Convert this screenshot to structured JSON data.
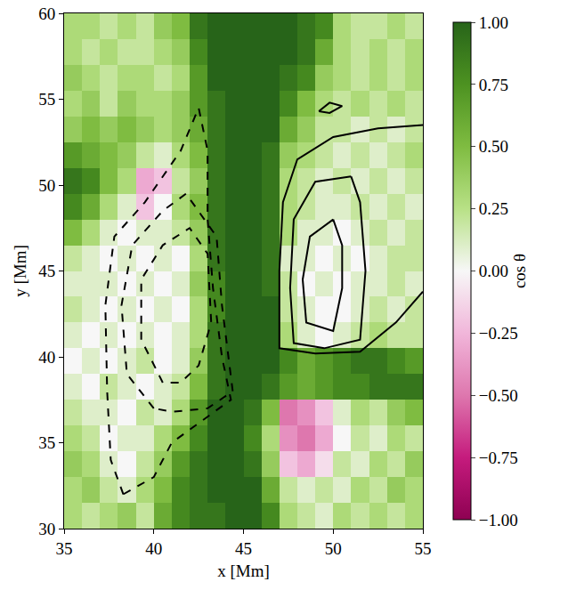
{
  "chart_data": {
    "type": "heatmap",
    "xlabel": "x [Mm]",
    "ylabel": "y [Mm]",
    "xlim": [
      35,
      55
    ],
    "ylim": [
      30,
      60
    ],
    "xticks": [
      35,
      40,
      45,
      50,
      55
    ],
    "yticks": [
      30,
      35,
      40,
      45,
      50,
      55,
      60
    ],
    "x": [
      35.5,
      36.5,
      37.5,
      38.5,
      39.5,
      40.5,
      41.5,
      42.5,
      43.5,
      44.5,
      45.5,
      46.5,
      47.5,
      48.5,
      49.5,
      50.5,
      51.5,
      52.5,
      53.5,
      54.5
    ],
    "y": [
      30.75,
      32.25,
      33.75,
      35.25,
      36.75,
      38.25,
      39.75,
      41.25,
      42.75,
      44.25,
      45.75,
      47.25,
      48.75,
      50.25,
      51.75,
      53.25,
      54.75,
      56.25,
      57.75,
      59.25
    ],
    "cells": [
      [
        0.3,
        0.2,
        0.3,
        0.4,
        0.2,
        0.6,
        0.8,
        0.9,
        0.9,
        1,
        1,
        0.8,
        0.3,
        0.2,
        0.1,
        0.3,
        0.2,
        0.3,
        0.2,
        0.3
      ],
      [
        0.3,
        0.4,
        0.2,
        0.1,
        0.3,
        0.5,
        0.8,
        0.9,
        1,
        1,
        1,
        0.6,
        0.2,
        0.1,
        0.2,
        0.1,
        0.3,
        0.2,
        0.4,
        0.3
      ],
      [
        0.4,
        0.3,
        0.1,
        0.0,
        0.2,
        0.4,
        0.7,
        0.9,
        1,
        1,
        0.9,
        0.4,
        -0.2,
        -0.3,
        -0.1,
        0.2,
        0.1,
        0.3,
        0.2,
        0.4
      ],
      [
        0.3,
        0.2,
        0.0,
        0.1,
        0.1,
        0.3,
        0.5,
        0.8,
        1,
        1,
        0.8,
        0.3,
        -0.4,
        -0.5,
        -0.3,
        0.0,
        0.2,
        0.1,
        0.3,
        0.2
      ],
      [
        0.2,
        0.1,
        0.1,
        0.0,
        0.2,
        0.1,
        0.3,
        0.7,
        1,
        1,
        0.9,
        0.5,
        -0.5,
        -0.4,
        -0.2,
        0.1,
        0.3,
        0.2,
        0.4,
        0.5
      ],
      [
        0.1,
        0.0,
        0.2,
        0.1,
        0.0,
        0.1,
        0.2,
        0.5,
        0.9,
        1,
        1,
        0.9,
        0.7,
        0.6,
        0.7,
        0.8,
        0.8,
        0.9,
        0.9,
        0.9
      ],
      [
        0.0,
        0.1,
        0.0,
        0.1,
        0.2,
        0.0,
        0.1,
        0.4,
        0.9,
        1,
        1,
        1,
        0.8,
        0.6,
        0.7,
        0.8,
        0.9,
        0.9,
        0.8,
        0.7
      ],
      [
        0.1,
        0.0,
        0.1,
        0.0,
        0.1,
        0.0,
        0.1,
        0.3,
        0.9,
        1,
        1,
        1,
        0.3,
        0.1,
        0.0,
        0.1,
        0.2,
        0.3,
        0.2,
        0.2
      ],
      [
        0.2,
        0.1,
        0.0,
        0.1,
        0.0,
        0.1,
        0.0,
        0.3,
        0.8,
        1,
        1,
        1,
        0.2,
        0.1,
        0.0,
        0.0,
        0.1,
        0.2,
        0.1,
        0.2
      ],
      [
        0.1,
        0.1,
        0.1,
        0.0,
        0.1,
        0.0,
        0.1,
        0.4,
        0.8,
        1,
        1,
        0.9,
        0.2,
        0.0,
        0.1,
        0.0,
        0.1,
        0.1,
        0.2,
        0.1
      ],
      [
        0.2,
        0.1,
        0.0,
        0.1,
        0.0,
        0.1,
        0.0,
        0.3,
        0.9,
        1,
        1,
        0.9,
        0.1,
        0.1,
        0.0,
        0.1,
        0.0,
        0.1,
        0.2,
        0.2
      ],
      [
        0.5,
        0.3,
        0.1,
        0.0,
        0.1,
        0.1,
        0.2,
        0.4,
        0.9,
        1,
        1,
        0.9,
        0.3,
        0.1,
        0.1,
        0.0,
        0.1,
        0.2,
        0.1,
        0.2
      ],
      [
        0.8,
        0.6,
        0.3,
        0.1,
        -0.2,
        0.0,
        0.3,
        0.5,
        0.9,
        1,
        1,
        0.9,
        0.3,
        0.2,
        0.1,
        0.1,
        0.2,
        0.1,
        0.2,
        0.1
      ],
      [
        0.9,
        0.8,
        0.5,
        0.3,
        -0.3,
        -0.2,
        0.2,
        0.4,
        0.9,
        1,
        1,
        0.9,
        0.3,
        0.2,
        0.1,
        0.2,
        0.1,
        0.2,
        0.1,
        0.2
      ],
      [
        0.7,
        0.6,
        0.5,
        0.4,
        0.2,
        0.1,
        0.3,
        0.5,
        0.9,
        1,
        1,
        0.9,
        0.4,
        0.3,
        0.2,
        0.1,
        0.2,
        0.1,
        0.2,
        0.3
      ],
      [
        0.4,
        0.5,
        0.4,
        0.5,
        0.4,
        0.3,
        0.4,
        0.6,
        0.9,
        1,
        1,
        1,
        0.6,
        0.4,
        0.2,
        0.2,
        0.1,
        0.2,
        0.1,
        0.2
      ],
      [
        0.3,
        0.4,
        0.2,
        0.4,
        0.3,
        0.3,
        0.4,
        0.7,
        0.9,
        1,
        1,
        1,
        0.8,
        0.5,
        0.3,
        0.2,
        0.3,
        0.2,
        0.3,
        0.2
      ],
      [
        0.4,
        0.3,
        0.2,
        0.3,
        0.3,
        0.2,
        0.3,
        0.7,
        1,
        1,
        1,
        1,
        0.9,
        0.8,
        0.4,
        0.3,
        0.2,
        0.3,
        0.2,
        0.3
      ],
      [
        0.3,
        0.2,
        0.3,
        0.2,
        0.2,
        0.3,
        0.4,
        0.8,
        1,
        1,
        1,
        1,
        1,
        0.9,
        0.6,
        0.3,
        0.2,
        0.3,
        0.2,
        0.3
      ],
      [
        0.3,
        0.3,
        0.2,
        0.3,
        0.2,
        0.4,
        0.5,
        0.9,
        1,
        1,
        1,
        1,
        1,
        0.9,
        0.8,
        0.3,
        0.2,
        0.2,
        0.3,
        0.2
      ]
    ],
    "colorbar": {
      "title": "cos θ",
      "range": [
        -1,
        1
      ],
      "ticks": [
        {
          "value": -1,
          "label": "−1.00"
        },
        {
          "value": -0.75,
          "label": "−0.75"
        },
        {
          "value": -0.5,
          "label": "−0.50"
        },
        {
          "value": -0.25,
          "label": "−0.25"
        },
        {
          "value": 0,
          "label": "0.00"
        },
        {
          "value": 0.25,
          "label": "0.25"
        },
        {
          "value": 0.5,
          "label": "0.50"
        },
        {
          "value": 0.75,
          "label": "0.75"
        },
        {
          "value": 1,
          "label": "1.00"
        }
      ]
    },
    "series": [
      {
        "type": "line",
        "line_style": "dashed",
        "color": "#000000",
        "x": [
          38.3,
          37.6,
          37.4,
          37.3,
          37.8,
          39.5,
          41.5,
          42.5,
          43.0,
          43.0,
          43.3,
          43.8,
          44.3,
          43.0,
          41.0,
          40.0,
          38.3
        ],
        "y": [
          32.0,
          34.0,
          38.0,
          43.0,
          47.0,
          49.0,
          52.0,
          54.5,
          52.0,
          48.0,
          44.0,
          40.0,
          37.5,
          36.5,
          35.0,
          33.0,
          32.0
        ]
      },
      {
        "type": "line",
        "line_style": "dashed",
        "color": "#000000",
        "x": [
          40.0,
          38.5,
          38.2,
          38.8,
          40.5,
          41.8,
          43.5,
          43.8,
          44.4,
          43.0,
          41.0,
          40.0
        ],
        "y": [
          37.0,
          39.0,
          43.0,
          46.5,
          48.5,
          49.5,
          47.0,
          43.0,
          38.0,
          37.0,
          36.8,
          37.0
        ]
      },
      {
        "type": "line",
        "line_style": "dashed",
        "color": "#000000",
        "x": [
          40.5,
          39.3,
          39.3,
          40.5,
          42.0,
          43.0,
          43.2,
          42.5,
          41.5,
          40.5
        ],
        "y": [
          38.5,
          41.0,
          44.5,
          46.5,
          47.5,
          46.0,
          42.0,
          39.5,
          38.5,
          38.5
        ]
      },
      {
        "type": "line",
        "line_style": "solid",
        "color": "#000000",
        "x": [
          55.0,
          52.5,
          50.0,
          48.0,
          47.2,
          47.0,
          47.0,
          49.0,
          51.5,
          53.5,
          55.0
        ],
        "y": [
          53.5,
          53.3,
          52.8,
          51.5,
          49.0,
          45.0,
          40.5,
          40.2,
          40.3,
          42.0,
          43.8
        ]
      },
      {
        "type": "line",
        "line_style": "solid",
        "color": "#000000",
        "x": [
          51.0,
          49.0,
          47.8,
          47.6,
          47.8,
          49.5,
          51.5,
          51.8,
          51.5,
          51.0
        ],
        "y": [
          50.5,
          50.2,
          48.0,
          44.0,
          40.8,
          40.5,
          41.0,
          45.0,
          49.0,
          50.5
        ]
      },
      {
        "type": "line",
        "line_style": "solid",
        "color": "#000000",
        "x": [
          50.0,
          48.7,
          48.3,
          48.5,
          50.0,
          50.5,
          50.5,
          50.0
        ],
        "y": [
          48.0,
          47.0,
          44.5,
          42.0,
          41.5,
          44.0,
          46.5,
          48.0
        ]
      },
      {
        "type": "line",
        "line_style": "solid",
        "color": "#000000",
        "x": [
          49.2,
          49.8,
          50.5,
          49.8,
          49.2
        ],
        "y": [
          54.3,
          54.8,
          54.6,
          54.2,
          54.3
        ]
      }
    ]
  }
}
